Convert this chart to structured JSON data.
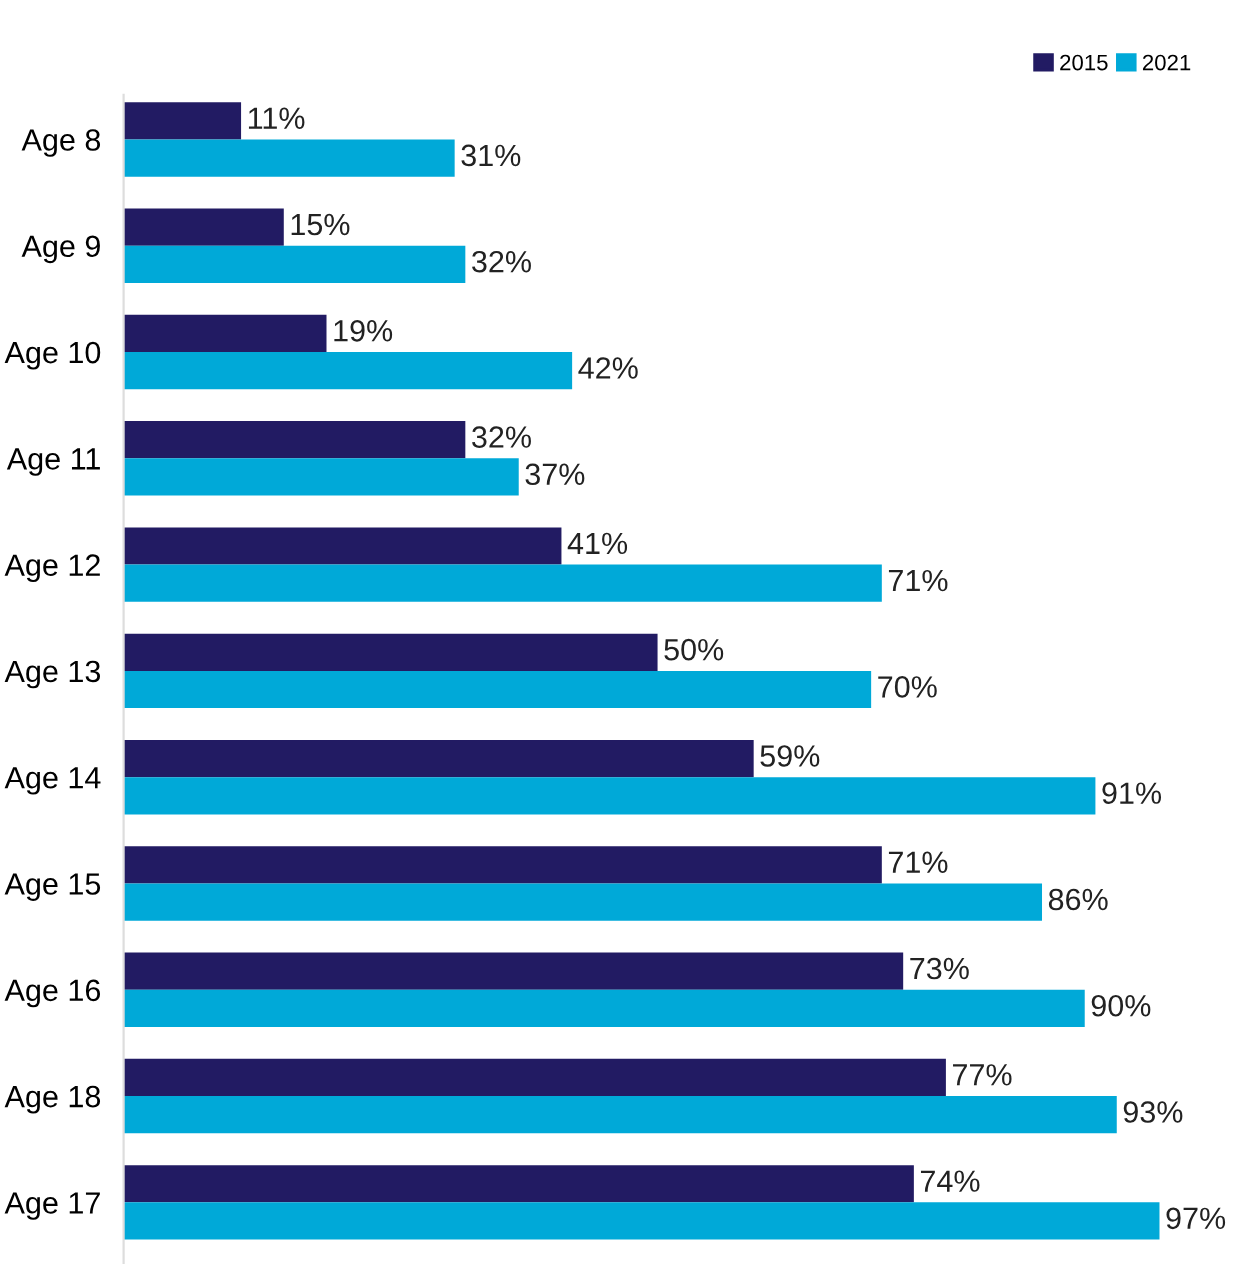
{
  "chart_data": {
    "type": "bar",
    "orientation": "horizontal",
    "legend": "top right",
    "categories": [
      "Age 8",
      "Age 9",
      "Age 10",
      "Age 11",
      "Age 12",
      "Age 13",
      "Age 14",
      "Age 15",
      "Age 16",
      "Age 18",
      "Age 17"
    ],
    "series": [
      {
        "name": "2015",
        "color": "#221b63",
        "values": [
          11,
          15,
          19,
          32,
          41,
          50,
          59,
          71,
          73,
          77,
          74
        ],
        "value_labels": [
          "11%",
          "15%",
          "19%",
          "32%",
          "41%",
          "50%",
          "59%",
          "71%",
          "73%",
          "77%",
          "74%"
        ]
      },
      {
        "name": "2021",
        "color": "#00a9d8",
        "values": [
          31,
          32,
          42,
          37,
          71,
          70,
          91,
          86,
          90,
          93,
          97
        ],
        "value_labels": [
          "31%",
          "32%",
          "42%",
          "37%",
          "71%",
          "70%",
          "91%",
          "86%",
          "90%",
          "93%",
          "97%"
        ]
      }
    ]
  }
}
